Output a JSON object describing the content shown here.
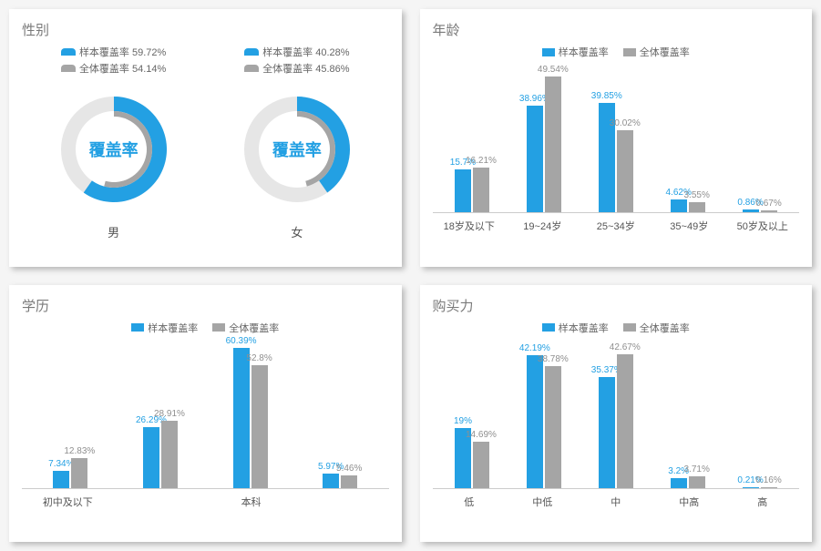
{
  "colors": {
    "sample": "#23a0e3",
    "overall": "#a5a5a5",
    "text_sample": "#23a0e3",
    "text_overall": "#8f8f8f",
    "panel_title": "#7a7a7a"
  },
  "legend": {
    "sample_label": "样本覆盖率",
    "overall_label": "全体覆盖率"
  },
  "gender": {
    "title": "性别",
    "center_label": "覆盖率",
    "items": [
      {
        "name": "男",
        "sample_pct": 59.72,
        "overall_pct": 54.14,
        "sample_legend": "样本覆盖率 59.72%",
        "overall_legend": "全体覆盖率 54.14%"
      },
      {
        "name": "女",
        "sample_pct": 40.28,
        "overall_pct": 45.86,
        "sample_legend": "样本覆盖率 40.28%",
        "overall_legend": "全体覆盖率 45.86%"
      }
    ],
    "donut": {
      "outer_r": 60,
      "sample_inner_r": 42,
      "sample_outer_r": 58,
      "overall_inner_r": 36,
      "overall_outer_r": 42,
      "track_color": "#e6e6e6",
      "start_angle_deg": -90
    }
  },
  "age": {
    "title": "年龄",
    "ymax": 55,
    "categories": [
      "18岁及以下",
      "19~24岁",
      "25~34岁",
      "35~49岁",
      "50岁及以上"
    ],
    "sample": [
      15.7,
      38.96,
      39.85,
      4.62,
      0.86
    ],
    "overall": [
      16.21,
      49.54,
      30.02,
      3.55,
      0.67
    ],
    "sample_labels": [
      "15.7%",
      "38.96%",
      "39.85%",
      "4.62%",
      "0.86%"
    ],
    "overall_labels": [
      "16.21%",
      "49.54%",
      "30.02%",
      "3.55%",
      "0.67%"
    ]
  },
  "education": {
    "title": "学历",
    "ymax": 65,
    "categories": [
      "初中及以下",
      "",
      "本科",
      ""
    ],
    "sample": [
      7.34,
      26.29,
      60.39,
      5.97
    ],
    "overall": [
      12.83,
      28.91,
      52.8,
      5.46
    ],
    "sample_labels": [
      "7.34%",
      "26.29%",
      "60.39%",
      "5.97%"
    ],
    "overall_labels": [
      "12.83%",
      "28.91%",
      "52.8%",
      "5.46%"
    ]
  },
  "purchase": {
    "title": "购买力",
    "ymax": 48,
    "categories": [
      "低",
      "中低",
      "中",
      "中高",
      "高"
    ],
    "sample": [
      19.0,
      42.19,
      35.37,
      3.2,
      0.21
    ],
    "overall": [
      14.69,
      38.78,
      42.67,
      3.71,
      0.16
    ],
    "sample_labels": [
      "19%",
      "42.19%",
      "35.37%",
      "3.2%",
      "0.21%"
    ],
    "overall_labels": [
      "14.69%",
      "38.78%",
      "42.67%",
      "3.71%",
      "0.16%"
    ]
  }
}
